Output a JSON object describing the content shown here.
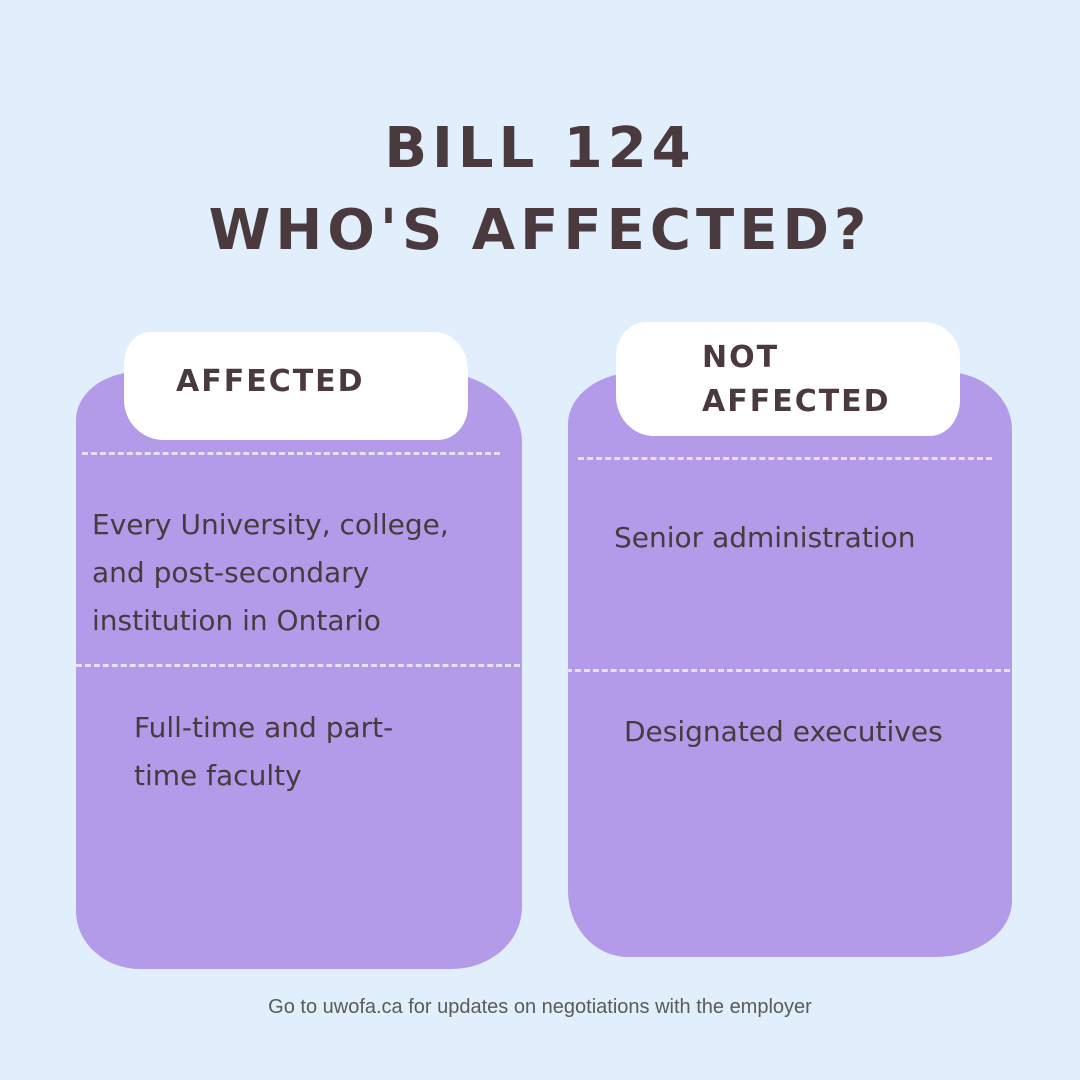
{
  "title": {
    "line1": "BILL 124",
    "line2": "WHO'S AFFECTED?"
  },
  "columns": [
    {
      "label": "AFFECTED",
      "items": [
        "Every University, college, and post-secondary institution in Ontario",
        "Full-time and part-time faculty"
      ]
    },
    {
      "label": "NOT AFFECTED",
      "items": [
        "Senior administration",
        "Designated executives"
      ]
    }
  ],
  "footer": "Go to uwofa.ca for updates on negotiations with the employer",
  "colors": {
    "background": "#e1effc",
    "jar": "#b49bea",
    "label": "#ffffff",
    "text": "#4a3a3d"
  }
}
